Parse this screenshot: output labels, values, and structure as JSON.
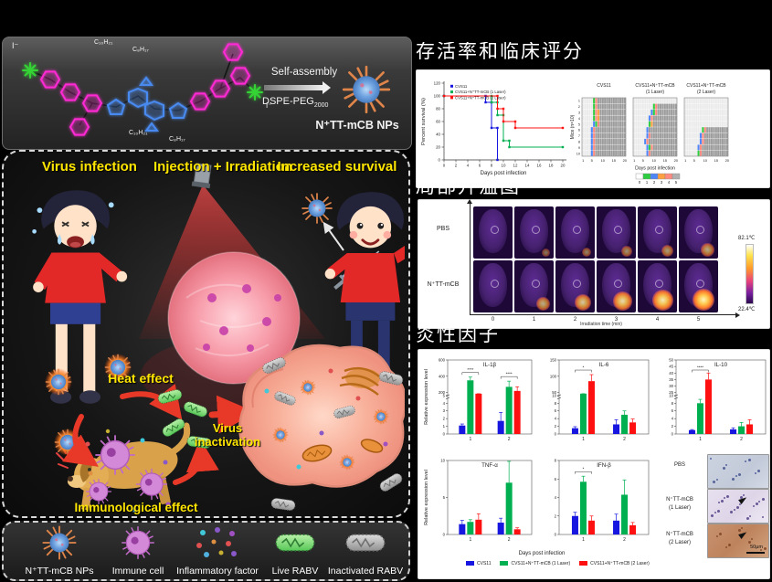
{
  "colors": {
    "blue": "#1616e0",
    "green": "#00b050",
    "red": "#ff1010",
    "yellow": "#ffe600"
  },
  "left_column": {
    "chem_panel": {
      "iodide_left": "I⁻",
      "iodide_right": "I⁻",
      "alkyl_top_1": "C₁₀H₂₁",
      "alkyl_top_2": "C₈H₁₇",
      "alkyl_bottom_1": "C₁₀H₂₁",
      "alkyl_bottom_2": "C₈H₁₇",
      "self_assembly_label": "Self-assembly",
      "dspe_label": "DSPE-PEG",
      "dspe_sub": "2000",
      "np_label": "N⁺TT-mCB NPs"
    },
    "scheme_panel": {
      "header_left": "Virus infection",
      "header_center": "Injection + Irradiation",
      "header_right": "Increased survival",
      "label_heat": "Heat effect",
      "label_virus_line1": "Virus",
      "label_virus_line2": "inactivation",
      "label_immuno": "Immunological effect"
    },
    "legend_panel": {
      "items": [
        {
          "label": "N⁺TT-mCB NPs"
        },
        {
          "label": "Immune cell"
        },
        {
          "label": "Inflammatory factor"
        },
        {
          "label": "Live RABV"
        },
        {
          "label": "Inactivated RABV"
        }
      ]
    }
  },
  "right_column": {
    "section1_title": "存活率和临床评分",
    "section2_title": "局部升温图",
    "section3_title": "炎性因子",
    "histology": {
      "rows": [
        {
          "label1": "PBS",
          "label2": ""
        },
        {
          "label1": "N⁺TT-mCB",
          "label2": "(1 Laser)"
        },
        {
          "label1": "N⁺TT-mCB",
          "label2": "(2 Laser)"
        }
      ],
      "scale_bar": "50μm"
    }
  },
  "chart_data": [
    {
      "name": "survival",
      "type": "line",
      "xlabel": "Days post infection",
      "ylabel": "Percent survival (%)",
      "xlim": [
        0,
        20
      ],
      "ylim": [
        0,
        120
      ],
      "xticks": [
        0,
        2,
        4,
        6,
        8,
        10,
        12,
        14,
        16,
        18,
        20
      ],
      "yticks": [
        0,
        20,
        40,
        60,
        80,
        100,
        120
      ],
      "legend_position": "top-left",
      "grid": false,
      "series": [
        {
          "name": "CVS11",
          "color": "#1616e0",
          "points": [
            [
              0,
              100
            ],
            [
              7,
              100
            ],
            [
              7,
              90
            ],
            [
              8,
              90
            ],
            [
              8,
              50
            ],
            [
              9,
              50
            ],
            [
              9,
              0
            ]
          ]
        },
        {
          "name": "CVS11+N⁺TT-mCB (1 Laser)",
          "color": "#00b050",
          "points": [
            [
              0,
              100
            ],
            [
              8,
              100
            ],
            [
              8,
              90
            ],
            [
              9,
              90
            ],
            [
              9,
              70
            ],
            [
              10,
              70
            ],
            [
              10,
              30
            ],
            [
              11,
              30
            ],
            [
              11,
              20
            ],
            [
              20,
              20
            ]
          ]
        },
        {
          "name": "CVS11+N⁺TT-mCB (2 Laser)",
          "color": "#ff1010",
          "points": [
            [
              0,
              100
            ],
            [
              9,
              100
            ],
            [
              9,
              80
            ],
            [
              10,
              80
            ],
            [
              10,
              60
            ],
            [
              12,
              60
            ],
            [
              12,
              50
            ],
            [
              20,
              50
            ]
          ]
        }
      ]
    },
    {
      "name": "clinical_score",
      "type": "heatmap",
      "ylabel": "Mice (n=10)",
      "xlabel": "Days post infection",
      "xticks": [
        1,
        5,
        10,
        15,
        20
      ],
      "cell_colors": {
        "L": "#ebebeb",
        "D": "#9c9c9c",
        "G": "#2ecc40",
        "B": "#4f86f7",
        "O": "#ff9f40",
        "S": "#ff8a80"
      },
      "legend": {
        "ticks": [
          0,
          1,
          2,
          3,
          4,
          5
        ],
        "colors": [
          "#ffffff",
          "#2ecc40",
          "#4f86f7",
          "#ff9f40",
          "#ff8a80",
          "#b0b0b0"
        ]
      },
      "panels": [
        {
          "title": [
            "CVS11",
            ""
          ],
          "rows": [
            "LLLLLGSDDDDDDDDDDDDD",
            "LLLLLGSDDDDDDDDDDDDD",
            "LLLLLGSODDDDDDDDDDDD",
            "LLLLLGSODDDDDDDDDDDD",
            "LLLLLBGSDDDDDDDDDDDD",
            "LLLLBSDDDDDDDDDDDDDD",
            "LLLLBSDDDDDDDDDDDDDD",
            "LLLLBSDDDDDDDDDDDDDD",
            "LLLLBSDDDDDDDDDDDDDD",
            "LLLLBSDDDDDDDDDDDDDD"
          ]
        },
        {
          "title": [
            "CVS11+N⁺TT-mCB",
            "(1 Laser)"
          ],
          "rows": [
            "LLLLLLLLLLLLLLLLLLLL",
            "LLLLLLLLLGSDDDDDDDDD",
            "LLLLLLLLBGSDDDDDDDDD",
            "LLLLLLLBSDDDDDDDDDDD",
            "LLLLLLLGODDDDDDDDDDD",
            "LLLLLLBDDDDDDDDDDDDD",
            "LLLLLLBSDDDDDDDDDDDD",
            "LLLLLBSDDDDDDDDDDDDD",
            "LLLLLLBGSDDDDDDDDDDD",
            "LLLLLLBSDDDDDDDDDDDD"
          ]
        },
        {
          "title": [
            "CVS11+N⁺TT-mCB",
            "(2 Laser)"
          ],
          "rows": [
            "LLLLLLLLLLLLLLLLLLLL",
            "LLLLLLLLLLLLLLLLLLLL",
            "LLLLLLLLLLLLLLLLLLLL",
            "LLLLLLLLLLLLLLLLLLLL",
            "LLLLLLLLLLLLLLLLLLLL",
            "LLLLLLLLGSDDDDDDDDDD",
            "LLLLLLLBSDDDDDDDDDDD",
            "LLLLLLLBSDDDDDDDDDDD",
            "LLLLLLBSDDDDDDDDDDDD",
            "LLLLLLGSDDDDDDDDDDDD"
          ]
        }
      ]
    },
    {
      "name": "thermal",
      "type": "heatmap-images",
      "xlabel": "Irradiation time (min)",
      "xticks": [
        0,
        1,
        2,
        3,
        4,
        5
      ],
      "scale_max": "82.1℃",
      "scale_min": "22.4℃",
      "rows": [
        {
          "label": "PBS",
          "intensity": [
            0.05,
            0.22,
            0.3,
            0.38,
            0.45,
            0.52
          ]
        },
        {
          "label": "N⁺TT-mCB",
          "intensity": [
            0.05,
            0.55,
            0.7,
            0.82,
            0.92,
            1
          ]
        }
      ]
    },
    {
      "name": "cytokine_bars",
      "type": "bar",
      "xlabel": "Days post infection",
      "shared_ylabel": "Relative expression level",
      "legend": [
        {
          "label": "CVS11",
          "color": "#1616e0"
        },
        {
          "label": "CVS11+N⁺TT-mCB (1 Laser)",
          "color": "#00b050"
        },
        {
          "label": "CVS11+N⁺TT-mCB (2 Laser)",
          "color": "#ff1010"
        }
      ],
      "charts": [
        {
          "id": "il1b",
          "title": "IL-1β",
          "ylabel": "Relative expression level",
          "categories": [
            "1",
            "2"
          ],
          "axis": {
            "low": [
              0,
              5
            ],
            "lowTicks": [
              0,
              1,
              2,
              3,
              4,
              5
            ],
            "high": [
              200,
              600
            ],
            "highTicks": [
              200,
              400,
              600
            ]
          },
          "series": [
            {
              "name": "CVS11",
              "color": "#1616e0",
              "values": [
                1.1,
                1.7
              ],
              "errors": [
                0.2,
                1.1
              ]
            },
            {
              "name": "CVS11+N⁺TT-mCB (1 Laser)",
              "color": "#00b050",
              "values": [
                350,
                270
              ],
              "errors": [
                40,
                70
              ]
            },
            {
              "name": "CVS11+N⁺TT-mCB (2 Laser)",
              "color": "#ff1010",
              "values": [
                150,
                220
              ],
              "errors": [
                15,
                50
              ]
            }
          ],
          "sig": [
            {
              "g": 0,
              "label": "****"
            },
            {
              "g": 1,
              "label": "****"
            }
          ]
        },
        {
          "id": "il6",
          "title": "IL-6",
          "ylabel": "",
          "categories": [
            "1",
            "2"
          ],
          "axis": {
            "low": [
              0,
              10
            ],
            "lowTicks": [
              0,
              2,
              4,
              6,
              8,
              10
            ],
            "high": [
              50,
              150
            ],
            "highTicks": [
              50,
              100,
              150
            ]
          },
          "series": [
            {
              "name": "CVS11",
              "color": "#1616e0",
              "values": [
                1.5,
                2.5
              ],
              "errors": [
                0.4,
                1.2
              ]
            },
            {
              "name": "CVS11+N⁺TT-mCB (1 Laser)",
              "color": "#00b050",
              "values": [
                30,
                5
              ],
              "errors": [
                3,
                1
              ]
            },
            {
              "name": "CVS11+N⁺TT-mCB (2 Laser)",
              "color": "#ff1010",
              "values": [
                85,
                3
              ],
              "errors": [
                20,
                0.9
              ]
            }
          ],
          "sig": [
            {
              "g": 0,
              "label": "*"
            }
          ]
        },
        {
          "id": "il10",
          "title": "IL-10",
          "ylabel": "",
          "categories": [
            "1",
            "2"
          ],
          "axis": {
            "low": [
              0,
              10
            ],
            "lowTicks": [
              0,
              2,
              4,
              6,
              8,
              10
            ],
            "high": [
              25,
              50
            ],
            "highTicks": [
              25,
              30,
              35,
              40,
              45,
              50
            ]
          },
          "series": [
            {
              "name": "CVS11",
              "color": "#1616e0",
              "values": [
                1,
                1.2
              ],
              "errors": [
                0.15,
                0.4
              ]
            },
            {
              "name": "CVS11+N⁺TT-mCB (1 Laser)",
              "color": "#00b050",
              "values": [
                8,
                2
              ],
              "errors": [
                1,
                1
              ]
            },
            {
              "name": "CVS11+N⁺TT-mCB (2 Laser)",
              "color": "#ff1010",
              "values": [
                35,
                2.5
              ],
              "errors": [
                5,
                1.2
              ]
            }
          ],
          "sig": [
            {
              "g": 0,
              "label": "****"
            }
          ]
        },
        {
          "id": "tnfa",
          "title": "TNF-α",
          "ylabel": "Relative expression level",
          "categories": [
            "1",
            "2"
          ],
          "axis": {
            "low": [
              0,
              10
            ],
            "lowTicks": [
              0,
              5,
              10
            ]
          },
          "series": [
            {
              "name": "CVS11",
              "color": "#1616e0",
              "values": [
                1.4,
                1.6
              ],
              "errors": [
                0.5,
                0.6
              ]
            },
            {
              "name": "CVS11+N⁺TT-mCB (1 Laser)",
              "color": "#00b050",
              "values": [
                1.7,
                7
              ],
              "errors": [
                0.3,
                3.5
              ]
            },
            {
              "name": "CVS11+N⁺TT-mCB (2 Laser)",
              "color": "#ff1010",
              "values": [
                2,
                0.7
              ],
              "errors": [
                0.8,
                0.2
              ]
            }
          ],
          "sig": []
        },
        {
          "id": "ifnb",
          "title": "IFN-β",
          "ylabel": "",
          "categories": [
            "1",
            "2"
          ],
          "axis": {
            "low": [
              0,
              8
            ],
            "lowTicks": [
              0,
              2,
              4,
              6,
              8
            ]
          },
          "series": [
            {
              "name": "CVS11",
              "color": "#1616e0",
              "values": [
                2,
                1.5
              ],
              "errors": [
                0.4,
                0.7
              ]
            },
            {
              "name": "CVS11+N⁺TT-mCB (1 Laser)",
              "color": "#00b050",
              "values": [
                5.7,
                4.3
              ],
              "errors": [
                0.6,
                1.6
              ]
            },
            {
              "name": "CVS11+N⁺TT-mCB (2 Laser)",
              "color": "#ff1010",
              "values": [
                1.5,
                1
              ],
              "errors": [
                0.5,
                0.3
              ]
            }
          ],
          "sig": [
            {
              "g": 0,
              "label": "*"
            }
          ]
        }
      ]
    }
  ]
}
